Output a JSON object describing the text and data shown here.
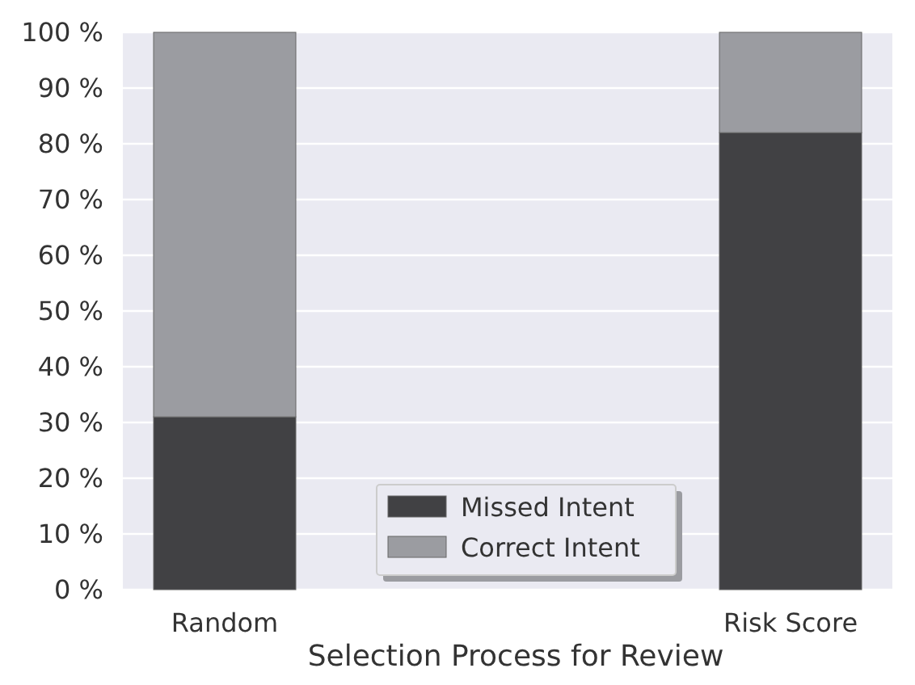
{
  "chart_data": {
    "type": "bar",
    "stacked": true,
    "xlabel": "Selection Process for Review",
    "categories": [
      "Random",
      "Risk Score"
    ],
    "series": [
      {
        "name": "Missed Intent",
        "color": "#414144",
        "values": [
          31,
          82
        ]
      },
      {
        "name": "Correct Intent",
        "color": "#9b9ca1",
        "values": [
          69,
          18
        ]
      }
    ],
    "ylim": [
      0,
      100
    ],
    "yticks": [
      {
        "value": 0,
        "label": "0 %"
      },
      {
        "value": 10,
        "label": "10 %"
      },
      {
        "value": 20,
        "label": "20 %"
      },
      {
        "value": 30,
        "label": "30 %"
      },
      {
        "value": 40,
        "label": "40 %"
      },
      {
        "value": 50,
        "label": "50 %"
      },
      {
        "value": 60,
        "label": "60 %"
      },
      {
        "value": 70,
        "label": "70 %"
      },
      {
        "value": 80,
        "label": "80 %"
      },
      {
        "value": 90,
        "label": "90 %"
      },
      {
        "value": 100,
        "label": "100 %"
      }
    ],
    "grid": "y",
    "legend": "bottom"
  }
}
